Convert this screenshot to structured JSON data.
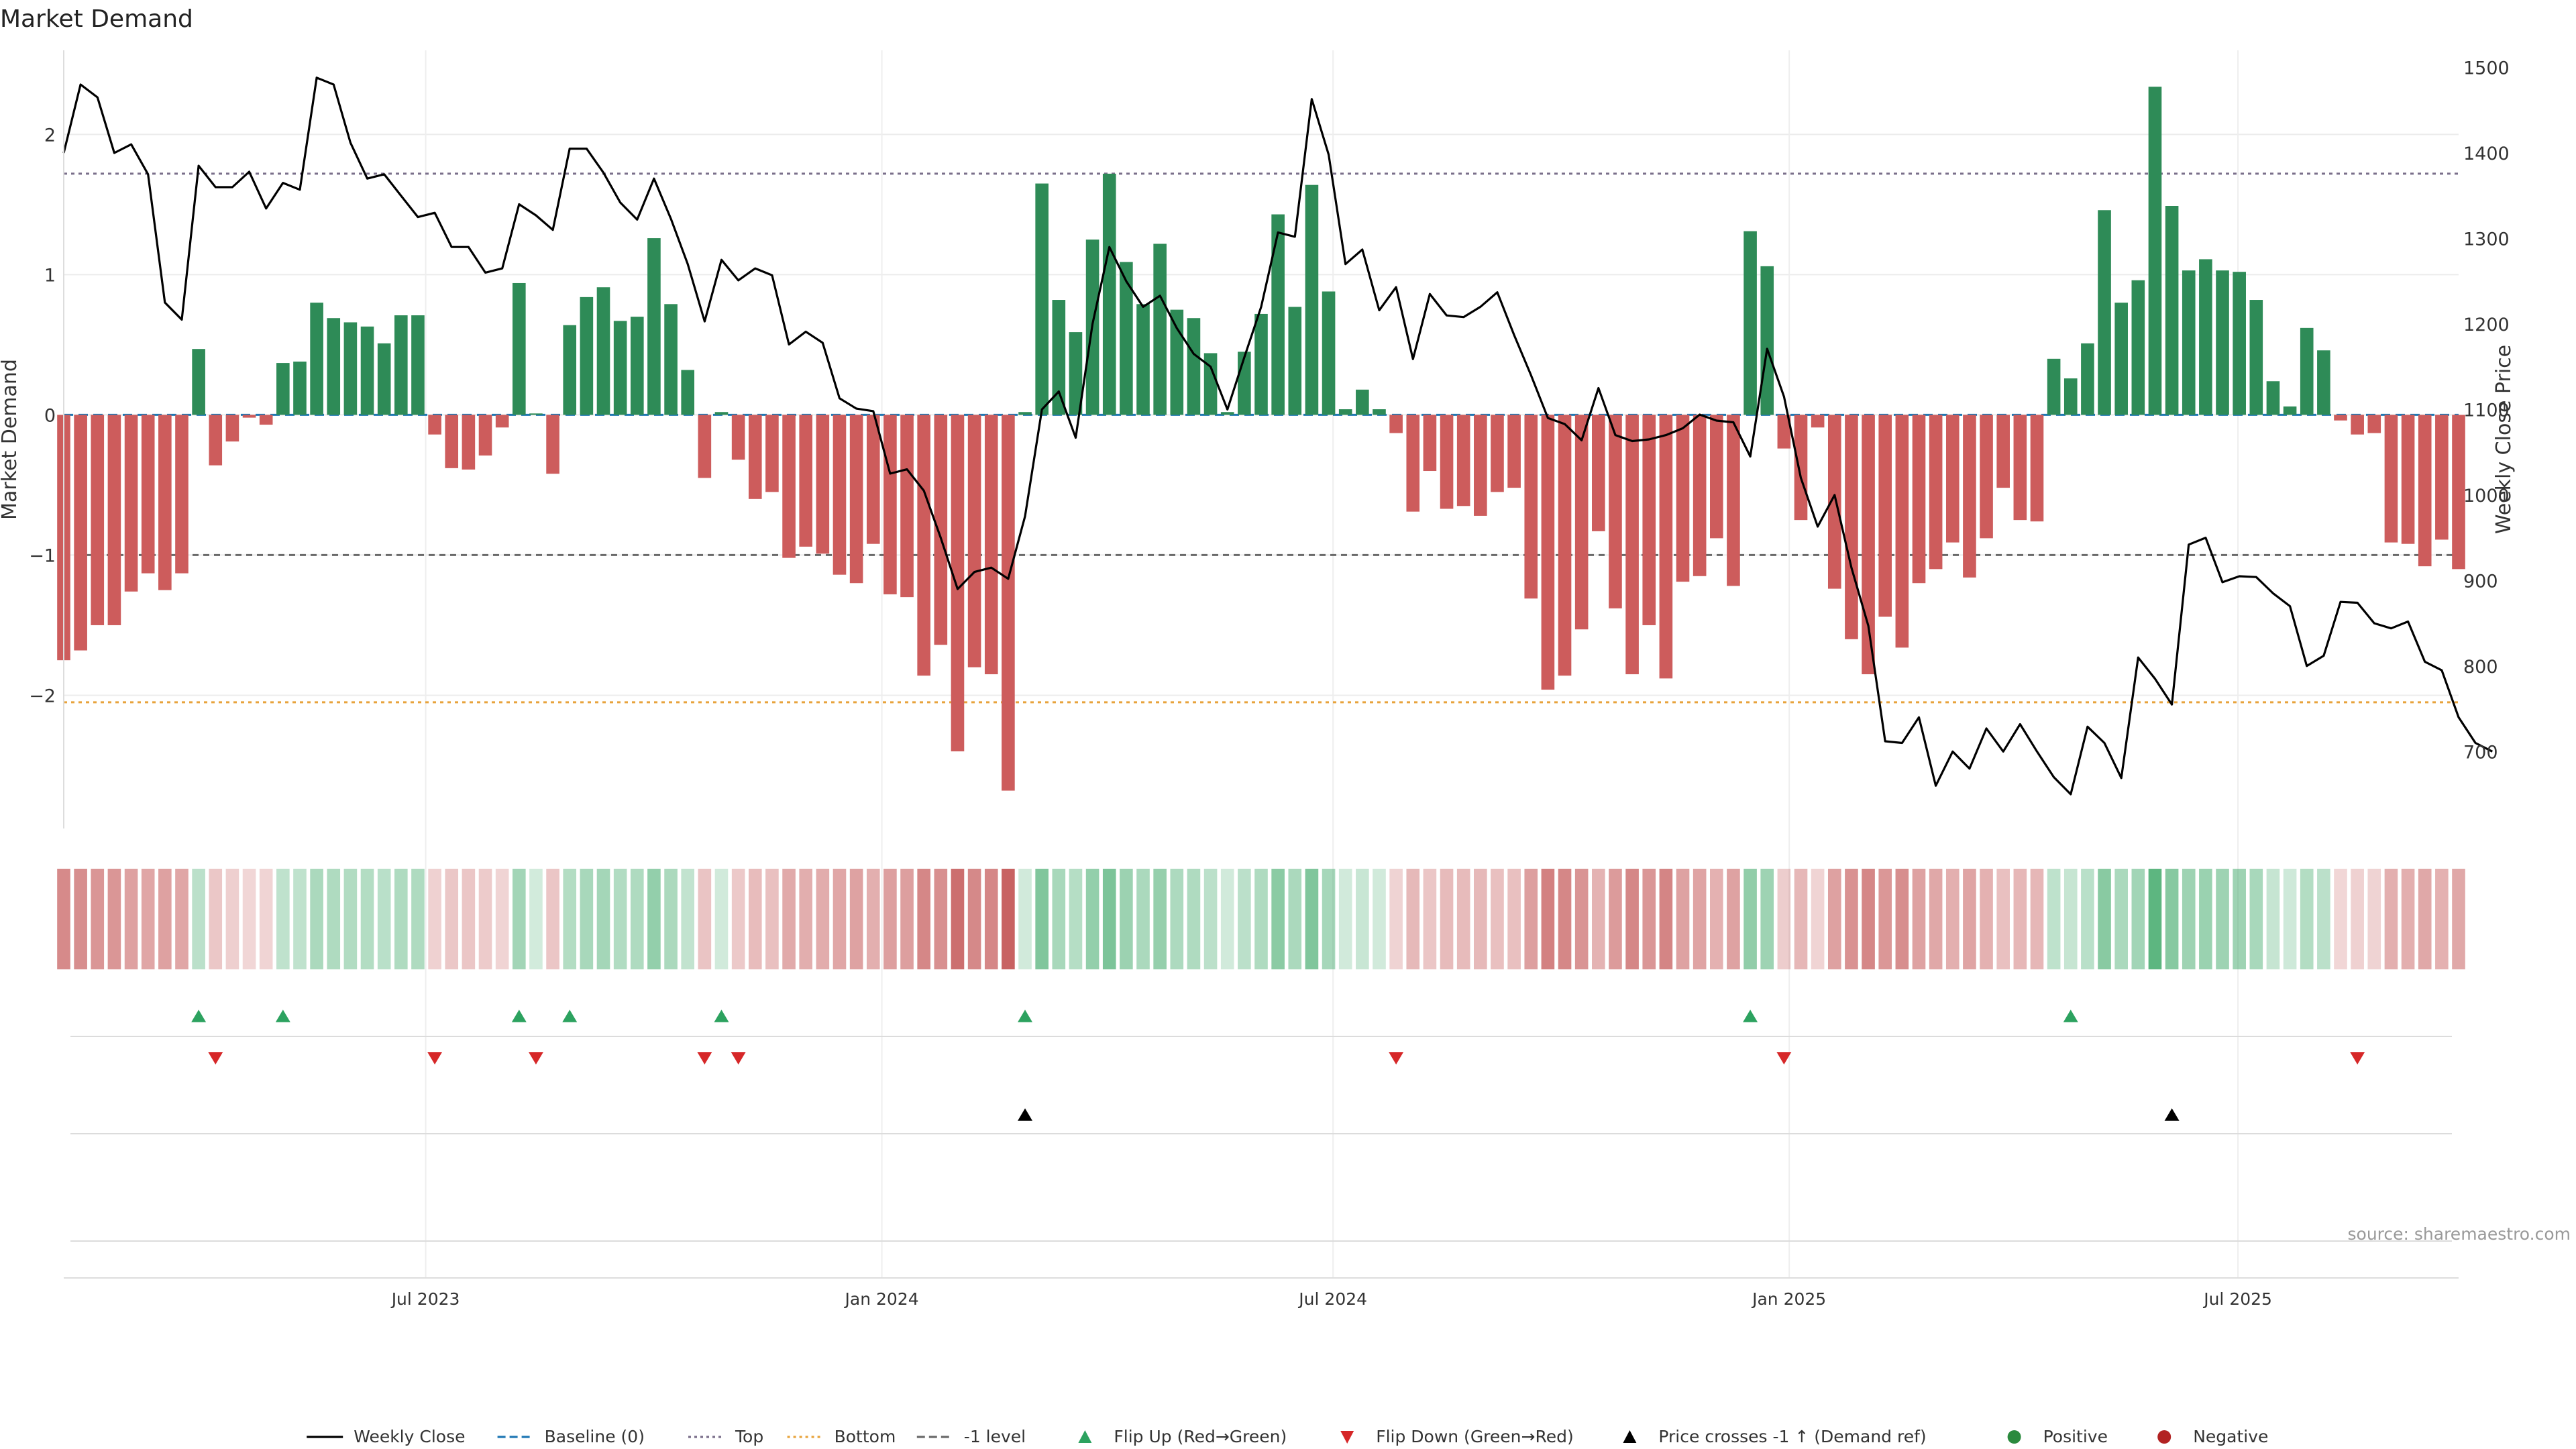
{
  "page": {
    "title": "Market Demand",
    "source": "source: sharemaestro.com"
  },
  "chart_data": {
    "type": "bar",
    "title": "Market Demand",
    "ylabel": "Market Demand",
    "y2label": "Weekly Close Price",
    "ylim": [
      -2.95,
      2.6
    ],
    "y2lim": [
      610,
      1520
    ],
    "yticks": [
      -2,
      -1,
      0,
      1,
      2
    ],
    "ytick_labels": [
      "−2",
      "−1",
      "0",
      "1",
      "2"
    ],
    "y2ticks": [
      700,
      800,
      900,
      1000,
      1100,
      1200,
      1300,
      1400,
      1500
    ],
    "x_start": "2023-02-05",
    "x_end": "2025-09-28",
    "xticks": [
      "2023-07-01",
      "2024-01-01",
      "2024-07-01",
      "2025-01-01",
      "2025-07-01"
    ],
    "xtick_labels": [
      "Jul 2023",
      "Jan 2024",
      "Jul 2024",
      "Jan 2025",
      "Jul 2025"
    ],
    "reference_lines": {
      "baseline": 0,
      "top": 1.72,
      "bottom": -2.05,
      "minus_one": -1
    },
    "demand": [
      -1.75,
      -1.68,
      -1.5,
      -1.5,
      -1.26,
      -1.13,
      -1.25,
      -1.13,
      0.47,
      -0.36,
      -0.19,
      -0.02,
      -0.07,
      0.37,
      0.38,
      0.8,
      0.69,
      0.66,
      0.63,
      0.51,
      0.71,
      0.71,
      -0.14,
      -0.38,
      -0.39,
      -0.29,
      -0.09,
      0.94,
      0.01,
      -0.42,
      0.64,
      0.84,
      0.91,
      0.67,
      0.7,
      1.26,
      0.79,
      0.32,
      -0.45,
      0.02,
      -0.32,
      -0.6,
      -0.55,
      -1.02,
      -0.94,
      -0.99,
      -1.14,
      -1.2,
      -0.92,
      -1.28,
      -1.3,
      -1.86,
      -1.64,
      -2.4,
      -1.8,
      -1.85,
      -2.68,
      0.02,
      1.65,
      0.82,
      0.59,
      1.25,
      1.72,
      1.09,
      0.79,
      1.22,
      0.75,
      0.69,
      0.44,
      0.02,
      0.45,
      0.72,
      1.43,
      0.77,
      1.64,
      0.88,
      0.04,
      0.18,
      0.04,
      -0.13,
      -0.69,
      -0.4,
      -0.67,
      -0.65,
      -0.72,
      -0.55,
      -0.52,
      -1.31,
      -1.96,
      -1.86,
      -1.53,
      -0.83,
      -1.38,
      -1.85,
      -1.5,
      -1.88,
      -1.19,
      -1.15,
      -0.88,
      -1.22,
      1.31,
      1.06,
      -0.24,
      -0.75,
      -0.09,
      -1.24,
      -1.6,
      -1.85,
      -1.44,
      -1.66,
      -1.2,
      -1.1,
      -0.91,
      -1.16,
      -0.88,
      -0.52,
      -0.75,
      -0.76,
      0.4,
      0.26,
      0.51,
      1.46,
      0.8,
      0.96,
      2.34,
      1.49,
      1.03,
      1.11,
      1.03,
      1.02,
      0.82,
      0.24,
      0.06,
      0.62,
      0.46,
      -0.04,
      -0.14,
      -0.13,
      -0.91,
      -0.92,
      -1.08,
      -0.89,
      -1.1
    ],
    "weekly_close": [
      1400,
      1480,
      1465,
      1400,
      1410,
      1375,
      1225,
      1205,
      1385,
      1360,
      1360,
      1378,
      1335,
      1365,
      1357,
      1488,
      1480,
      1412,
      1370,
      1375,
      1350,
      1325,
      1330,
      1290,
      1290,
      1260,
      1265,
      1340,
      1327,
      1310,
      1405,
      1405,
      1377,
      1342,
      1322,
      1370,
      1323,
      1270,
      1203,
      1275,
      1251,
      1265,
      1257,
      1176,
      1191,
      1178,
      1113,
      1101,
      1098,
      1025,
      1030,
      1005,
      950,
      890,
      910,
      915,
      902,
      975,
      1100,
      1121,
      1067,
      1200,
      1290,
      1250,
      1220,
      1233,
      1195,
      1165,
      1150,
      1100,
      1161,
      1220,
      1307,
      1302,
      1463,
      1398,
      1270,
      1287,
      1216,
      1243,
      1159,
      1235,
      1210,
      1208,
      1220,
      1237,
      1187,
      1140,
      1090,
      1083,
      1064,
      1125,
      1070,
      1063,
      1065,
      1070,
      1078,
      1094,
      1087,
      1085,
      1045,
      1171,
      1115,
      1020,
      963,
      1000,
      915,
      847,
      712,
      710,
      740,
      660,
      700,
      680,
      727,
      700,
      732,
      700,
      670,
      650,
      729,
      710,
      669,
      810,
      785,
      755,
      942,
      950,
      898,
      905,
      904,
      885,
      870,
      800,
      812,
      875,
      874,
      850,
      844,
      852,
      805,
      795,
      740,
      710,
      700
    ]
  },
  "strip": {
    "flip_up_idx": [
      8,
      13,
      27,
      30,
      39,
      57,
      100,
      119
    ],
    "flip_down_idx": [
      9,
      22,
      28,
      38,
      40,
      79,
      102,
      136
    ],
    "price_cross_idx": [
      57,
      125
    ]
  },
  "legend": {
    "items": [
      {
        "kind": "line-solid",
        "label": "Weekly Close",
        "color": "#000000"
      },
      {
        "kind": "line-dashed",
        "label": "Baseline (0)",
        "color": "#1f77b4"
      },
      {
        "kind": "line-dotted",
        "label": "Top",
        "color": "#7a6f8a"
      },
      {
        "kind": "line-dotted",
        "label": "Bottom",
        "color": "#e8a33c"
      },
      {
        "kind": "line-dashed",
        "label": "-1 level",
        "color": "#6a6a6a"
      },
      {
        "kind": "tri-up",
        "label": "Flip Up (Red→Green)",
        "color": "#2ca25f"
      },
      {
        "kind": "tri-down",
        "label": "Flip Down (Green→Red)",
        "color": "#d62728"
      },
      {
        "kind": "tri-up",
        "label": "Price crosses -1 ↑ (Demand ref)",
        "color": "#000000"
      },
      {
        "kind": "dot",
        "label": "Positive",
        "color": "#2b8a3e"
      },
      {
        "kind": "dot",
        "label": "Negative",
        "color": "#b22222"
      }
    ]
  },
  "colors": {
    "positive_bar": "#2e8b57",
    "negative_bar": "#cd5c5c",
    "price_line": "#000000",
    "top_line": "#7a6f8a",
    "bottom_line": "#e8a33c",
    "baseline": "#1f77b4",
    "minus_one_line": "#6a6a6a"
  }
}
